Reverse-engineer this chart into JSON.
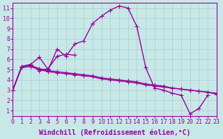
{
  "title": "",
  "xlabel": "Windchill (Refroidissement éolien,°C)",
  "ylabel": "",
  "bg_color": "#c8e8e8",
  "line_color": "#990099",
  "grid_color": "#aacccc",
  "xlim": [
    0,
    23
  ],
  "ylim": [
    0.5,
    11.5
  ],
  "xticks": [
    0,
    1,
    2,
    3,
    4,
    5,
    6,
    7,
    8,
    9,
    10,
    11,
    12,
    13,
    14,
    15,
    16,
    17,
    18,
    19,
    20,
    21,
    22,
    23
  ],
  "yticks": [
    1,
    2,
    3,
    4,
    5,
    6,
    7,
    8,
    9,
    10,
    11
  ],
  "line_x": [
    0,
    1,
    2,
    3,
    4,
    5,
    6,
    7,
    8,
    9,
    10,
    11,
    12,
    13,
    14,
    15,
    16,
    17,
    18,
    19,
    20,
    21,
    22,
    23
  ],
  "line_main_y": [
    3.0,
    5.3,
    5.5,
    6.2,
    5.0,
    7.0,
    6.3,
    7.5,
    7.8,
    9.5,
    10.2,
    10.8,
    11.2,
    11.0,
    9.2,
    5.2,
    3.2,
    3.0,
    2.7,
    2.5,
    0.7,
    1.2,
    2.5,
    null
  ],
  "line_mid_x": [
    0,
    1,
    2,
    3,
    4,
    5,
    6,
    7
  ],
  "line_mid_y": [
    3.0,
    5.3,
    5.5,
    4.9,
    5.1,
    6.3,
    6.5,
    6.4
  ],
  "line_trend1_y": [
    3.0,
    5.2,
    5.3,
    5.0,
    4.8,
    4.7,
    4.6,
    4.5,
    4.4,
    4.3,
    4.1,
    4.0,
    3.9,
    3.8,
    3.7,
    3.5,
    3.4,
    3.3,
    3.2,
    3.1,
    3.0,
    2.9,
    2.8,
    2.6
  ],
  "line_trend2_y": [
    3.0,
    5.3,
    5.4,
    5.1,
    4.9,
    4.8,
    4.7,
    4.6,
    4.5,
    4.4,
    4.2,
    4.1,
    4.0,
    3.9,
    3.8,
    3.6,
    3.5,
    3.4,
    3.2,
    3.1,
    3.0,
    2.9,
    2.8,
    2.7
  ],
  "marker": "+",
  "markersize": 4,
  "linewidth": 1.0,
  "xlabel_fontsize": 7,
  "tick_fontsize": 6,
  "tick_font": "monospace"
}
